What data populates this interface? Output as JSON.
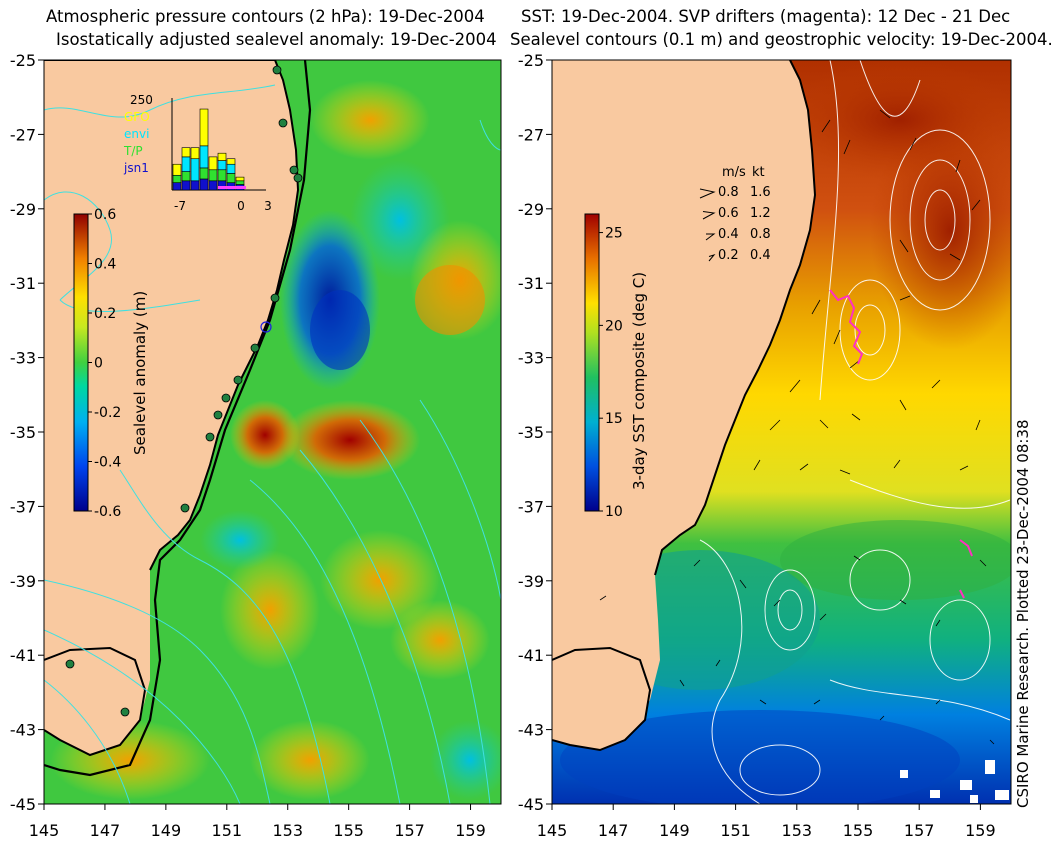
{
  "left_panel": {
    "title_line1": "Atmospheric pressure contours (2 hPa): 19-Dec-2004",
    "title_line2": "Isostatically adjusted sealevel anomaly: 19-Dec-2004",
    "colorbar": {
      "label": "Sealevel anomaly (m)",
      "ticks": [
        "0.6",
        "0.4",
        "0.2",
        "0",
        "-0.2",
        "-0.4",
        "-0.6"
      ],
      "min": -0.6,
      "max": 0.6
    },
    "inset_histogram": {
      "ymax_label": "250",
      "legend": [
        {
          "name": "GFO",
          "color": "#ffff00"
        },
        {
          "name": "envi",
          "color": "#00e5ff"
        },
        {
          "name": "T/P",
          "color": "#30e030"
        },
        {
          "name": "jsn1",
          "color": "#1010cc"
        }
      ],
      "x_ticks": [
        "-7",
        "0",
        "3"
      ],
      "bars": [
        {
          "day": -7,
          "jsn1": 20,
          "tp": 20,
          "envi": 0,
          "gfo": 30
        },
        {
          "day": -6,
          "jsn1": 25,
          "tp": 25,
          "envi": 40,
          "gfo": 25
        },
        {
          "day": -5,
          "jsn1": 25,
          "tp": 0,
          "envi": 60,
          "gfo": 30
        },
        {
          "day": -4,
          "jsn1": 30,
          "tp": 30,
          "envi": 60,
          "gfo": 100
        },
        {
          "day": -3,
          "jsn1": 25,
          "tp": 30,
          "envi": 0,
          "gfo": 35
        },
        {
          "day": -2,
          "jsn1": 25,
          "tp": 30,
          "envi": 25,
          "gfo": 20
        },
        {
          "day": -1,
          "jsn1": 20,
          "tp": 25,
          "envi": 25,
          "gfo": 15
        },
        {
          "day": 0,
          "jsn1": 15,
          "tp": 10,
          "envi": 0,
          "gfo": 10
        }
      ]
    }
  },
  "right_panel": {
    "title_line1": "SST: 19-Dec-2004. SVP drifters (magenta): 12 Dec - 21 Dec",
    "title_line2": "Sealevel contours (0.1 m) and geostrophic velocity: 19-Dec-2004.",
    "colorbar": {
      "label": "3-day SST composite (deg C)",
      "ticks": [
        "25",
        "20",
        "15",
        "10"
      ],
      "min": 10,
      "max": 26
    },
    "velocity_legend": {
      "header_ms": "m/s",
      "header_kt": "kt",
      "rows": [
        {
          "ms": "0.8",
          "kt": "1.6"
        },
        {
          "ms": "0.6",
          "kt": "1.2"
        },
        {
          "ms": "0.4",
          "kt": "0.8"
        },
        {
          "ms": "0.2",
          "kt": "0.4"
        }
      ]
    },
    "credit": "CSIRO Marine Research. Plotted 23-Dec-2004 08:38"
  },
  "axes": {
    "lat_ticks": [
      "-25",
      "-27",
      "-29",
      "-31",
      "-33",
      "-35",
      "-37",
      "-39",
      "-41",
      "-43",
      "-45"
    ],
    "lon_ticks": [
      "145",
      "147",
      "149",
      "151",
      "153",
      "155",
      "157",
      "159"
    ]
  },
  "colors": {
    "land": "#f9c9a0",
    "coast": "#000000",
    "pressure_contour": "#40e0e0",
    "sst_contour": "#ffffff",
    "drifters": "#ff30c0"
  }
}
